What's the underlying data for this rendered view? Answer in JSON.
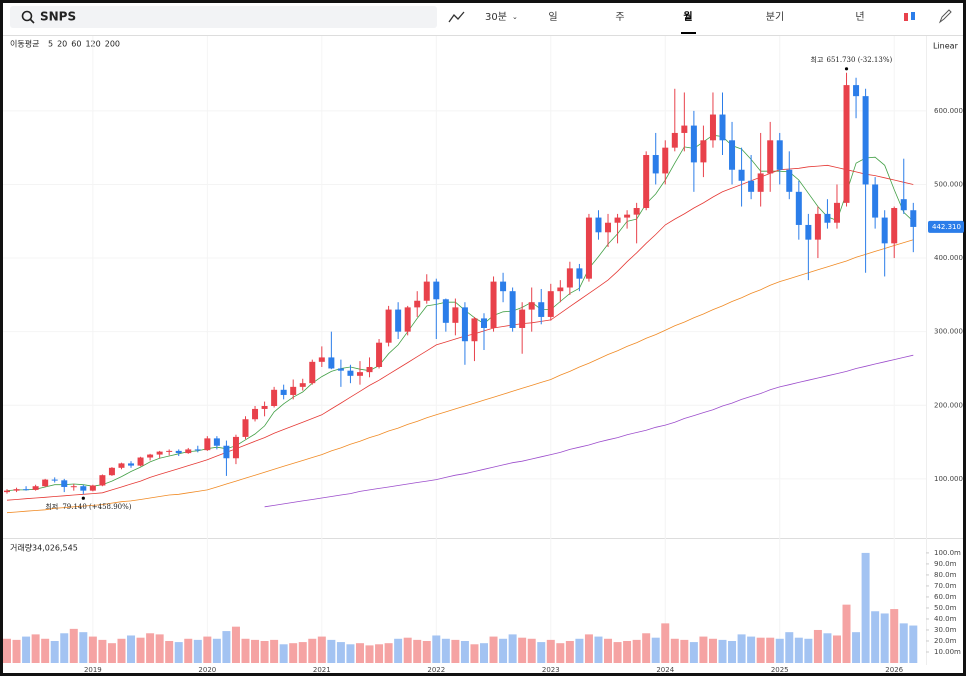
{
  "toolbar": {
    "symbol": "SNPS",
    "interval": "30분",
    "periods": [
      "일",
      "주",
      "월",
      "분기",
      "년"
    ]
  },
  "chart_data": [
    {
      "type": "candlestick",
      "indicator_label": "이동평균",
      "scale_label": "Linear",
      "up_color": "#e8414b",
      "down_color": "#2b7de9",
      "open": [
        82,
        84,
        86,
        85,
        90,
        99,
        98,
        89,
        90,
        84,
        91,
        105,
        115,
        121,
        118,
        129,
        133,
        137,
        138,
        135,
        140,
        139,
        155,
        145,
        128,
        157,
        181,
        195,
        199,
        221,
        214,
        225,
        230,
        259,
        265,
        250,
        247,
        240,
        245,
        252,
        285,
        330,
        300,
        333,
        342,
        368,
        344,
        312,
        333,
        287,
        318,
        305,
        368,
        355,
        305,
        330,
        340,
        320,
        355,
        360,
        386,
        372,
        455,
        435,
        448,
        455,
        459,
        468,
        540,
        515,
        550,
        570,
        580,
        530,
        560,
        595,
        560,
        520,
        505,
        490,
        515,
        560,
        520,
        490,
        445,
        425,
        460,
        448,
        475,
        635,
        620,
        500,
        455,
        420,
        480,
        465
      ],
      "high": [
        86,
        88,
        90,
        92,
        100,
        102,
        100,
        93,
        92,
        92,
        106,
        116,
        122,
        124,
        130,
        134,
        138,
        140,
        140,
        142,
        145,
        158,
        158,
        152,
        160,
        185,
        199,
        205,
        225,
        228,
        235,
        236,
        262,
        280,
        300,
        262,
        255,
        260,
        265,
        290,
        335,
        340,
        335,
        355,
        378,
        372,
        345,
        345,
        340,
        320,
        325,
        375,
        380,
        360,
        340,
        360,
        358,
        365,
        370,
        395,
        392,
        460,
        465,
        460,
        460,
        465,
        475,
        545,
        570,
        560,
        630,
        625,
        600,
        580,
        625,
        625,
        585,
        550,
        540,
        570,
        585,
        570,
        545,
        505,
        460,
        470,
        480,
        500,
        651.73,
        645,
        630,
        510,
        465,
        470,
        535,
        475
      ],
      "low": [
        80,
        82,
        84,
        84,
        89,
        95,
        82,
        84,
        79.14,
        83,
        90,
        104,
        113,
        115,
        117,
        125,
        128,
        132,
        131,
        134,
        136,
        138,
        140,
        104,
        120,
        154,
        178,
        185,
        197,
        208,
        208,
        220,
        228,
        252,
        249,
        225,
        230,
        228,
        238,
        250,
        280,
        290,
        295,
        320,
        338,
        290,
        300,
        295,
        255,
        260,
        275,
        300,
        340,
        300,
        270,
        300,
        310,
        315,
        340,
        350,
        355,
        368,
        425,
        415,
        420,
        440,
        420,
        465,
        500,
        500,
        545,
        545,
        490,
        510,
        550,
        540,
        500,
        470,
        480,
        470,
        490,
        500,
        480,
        425,
        370,
        400,
        440,
        440,
        470,
        590,
        380,
        440,
        375,
        400,
        460,
        408
      ],
      "close": [
        84,
        86,
        85,
        90,
        99,
        98,
        89,
        90,
        84,
        91,
        105,
        115,
        121,
        118,
        129,
        133,
        137,
        138,
        135,
        140,
        139,
        155,
        145,
        128,
        157,
        181,
        195,
        199,
        221,
        214,
        225,
        230,
        259,
        265,
        250,
        247,
        240,
        245,
        252,
        285,
        330,
        300,
        333,
        342,
        368,
        344,
        312,
        333,
        287,
        318,
        305,
        368,
        355,
        305,
        330,
        340,
        320,
        355,
        360,
        386,
        372,
        455,
        435,
        448,
        455,
        459,
        468,
        540,
        515,
        550,
        570,
        580,
        530,
        560,
        595,
        560,
        520,
        505,
        490,
        515,
        560,
        520,
        490,
        445,
        425,
        460,
        448,
        475,
        635,
        620,
        500,
        455,
        420,
        468,
        465,
        442.31
      ],
      "close_label": "442.310",
      "ylim": [
        21,
        699
      ],
      "yticks": [
        {
          "value": 100,
          "label": "100.000"
        },
        {
          "value": 200,
          "label": "200.000"
        },
        {
          "value": 300,
          "label": "300.000"
        },
        {
          "value": 400,
          "label": "400.000"
        },
        {
          "value": 500,
          "label": "500.000"
        },
        {
          "value": 600,
          "label": "600.000"
        }
      ],
      "annotations": [
        {
          "label": "최고",
          "text": "651.730 (-32.13%)"
        },
        {
          "label": "최저",
          "text": "79.140 (+458.90%)"
        }
      ],
      "moving_averages": [
        {
          "name": "5",
          "color": "#43a047",
          "values": [
            84,
            85,
            85,
            86,
            89,
            92,
            92,
            93,
            92,
            90,
            92,
            97,
            103,
            110,
            116,
            123,
            128,
            131,
            134,
            137,
            138,
            141,
            143,
            141,
            145,
            153,
            161,
            172,
            191,
            202,
            211,
            218,
            230,
            239,
            246,
            250,
            252,
            249,
            247,
            254,
            270,
            282,
            300,
            318,
            335,
            337,
            340,
            340,
            329,
            319,
            311,
            322,
            327,
            328,
            333,
            340,
            330,
            330,
            341,
            352,
            359,
            386,
            402,
            419,
            433,
            450,
            453,
            474,
            487,
            506,
            529,
            551,
            549,
            558,
            567,
            565,
            553,
            548,
            534,
            518,
            518,
            518,
            517,
            506,
            488,
            470,
            456,
            451,
            489,
            529,
            536,
            537,
            526,
            493,
            462,
            450
          ]
        },
        {
          "name": "20",
          "color": "#e53935",
          "values": [
            71,
            72,
            73,
            74,
            75,
            76,
            77,
            78,
            79,
            80,
            81,
            85,
            89,
            93,
            97,
            102,
            106,
            110,
            114,
            118,
            122,
            126,
            131,
            136,
            141,
            146,
            151,
            156,
            162,
            167,
            172,
            177,
            182,
            187,
            195,
            203,
            211,
            219,
            227,
            234,
            242,
            250,
            258,
            266,
            274,
            282,
            286,
            290,
            294,
            297,
            301,
            305,
            307,
            309,
            311,
            312,
            314,
            316,
            325,
            334,
            343,
            352,
            361,
            370,
            382,
            395,
            407,
            420,
            432,
            445,
            453,
            460,
            468,
            475,
            483,
            490,
            495,
            500,
            505,
            510,
            515,
            520,
            521,
            522,
            524,
            525,
            526,
            523,
            520,
            517,
            514,
            512,
            509,
            506,
            503,
            500
          ]
        },
        {
          "name": "60",
          "color": "#f08a24",
          "values": [
            54,
            55,
            56,
            57,
            58,
            60,
            61,
            62,
            63,
            64,
            65,
            67,
            69,
            70,
            72,
            74,
            76,
            78,
            79,
            81,
            83,
            85,
            89,
            93,
            97,
            101,
            105,
            109,
            113,
            117,
            121,
            125,
            129,
            133,
            138,
            142,
            147,
            151,
            156,
            160,
            165,
            169,
            174,
            178,
            183,
            187,
            191,
            195,
            199,
            203,
            207,
            211,
            215,
            219,
            223,
            227,
            231,
            235,
            241,
            246,
            252,
            257,
            263,
            269,
            274,
            280,
            285,
            291,
            296,
            302,
            308,
            313,
            319,
            324,
            330,
            335,
            341,
            346,
            352,
            357,
            363,
            368,
            372,
            376,
            380,
            384,
            388,
            392,
            396,
            401,
            405,
            409,
            413,
            417,
            421,
            425
          ]
        },
        {
          "name": "120",
          "color": "#9c4dcc",
          "values": [
            null,
            null,
            null,
            null,
            null,
            null,
            null,
            null,
            null,
            null,
            null,
            null,
            null,
            null,
            null,
            null,
            null,
            null,
            null,
            null,
            null,
            null,
            null,
            null,
            null,
            null,
            null,
            62,
            64,
            66,
            68,
            70,
            72,
            74,
            76,
            78,
            80,
            83,
            85,
            87,
            89,
            91,
            93,
            95,
            97,
            99,
            102,
            105,
            107,
            110,
            113,
            116,
            119,
            122,
            124,
            127,
            130,
            133,
            136,
            140,
            143,
            146,
            150,
            153,
            156,
            160,
            163,
            166,
            170,
            173,
            177,
            182,
            186,
            190,
            194,
            199,
            203,
            208,
            212,
            216,
            221,
            225,
            228,
            231,
            234,
            237,
            240,
            243,
            246,
            250,
            253,
            256,
            259,
            262,
            265,
            268
          ]
        },
        {
          "name": "200",
          "color": "#e0409a"
        }
      ]
    },
    {
      "type": "bar",
      "label": "거래량",
      "value_label": "34,026,545",
      "up_color": "#f5a3a3",
      "down_color": "#a3c3f2",
      "categories": [
        null,
        null,
        null,
        null,
        null,
        null,
        null,
        null,
        null,
        "2019",
        null,
        null,
        null,
        null,
        null,
        null,
        null,
        null,
        null,
        null,
        null,
        "2020",
        null,
        null,
        null,
        null,
        null,
        null,
        null,
        null,
        null,
        null,
        null,
        "2021",
        null,
        null,
        null,
        null,
        null,
        null,
        null,
        null,
        null,
        null,
        null,
        "2022",
        null,
        null,
        null,
        null,
        null,
        null,
        null,
        null,
        null,
        null,
        null,
        "2023",
        null,
        null,
        null,
        null,
        null,
        null,
        null,
        null,
        null,
        null,
        null,
        "2024",
        null,
        null,
        null,
        null,
        null,
        null,
        null,
        null,
        null,
        null,
        null,
        "2025",
        null,
        null,
        null,
        null,
        null,
        null,
        null,
        null,
        null,
        null,
        null,
        "2026",
        null,
        null
      ],
      "values": [
        22,
        21,
        24,
        26,
        22,
        20,
        27,
        31,
        28,
        24,
        21,
        18,
        22,
        25,
        23,
        27,
        26,
        20,
        19,
        22,
        21,
        24,
        22,
        29,
        33,
        22,
        21,
        20,
        21,
        17,
        18,
        19,
        22,
        24,
        21,
        19,
        17,
        18,
        16,
        17,
        18,
        22,
        23,
        21,
        20,
        25,
        22,
        21,
        20,
        17,
        18,
        24,
        22,
        26,
        23,
        22,
        19,
        21,
        18,
        20,
        22,
        26,
        24,
        22,
        19,
        20,
        21,
        27,
        23,
        36,
        22,
        21,
        19,
        24,
        22,
        21,
        20,
        26,
        24,
        23,
        23,
        22,
        28,
        23,
        22,
        30,
        27,
        25,
        53,
        28,
        100,
        47,
        45,
        49,
        36,
        34.03
      ],
      "ylim": [
        0,
        109
      ],
      "yticks": [
        {
          "value": 10,
          "label": "10.00m"
        },
        {
          "value": 20,
          "label": "20.0m"
        },
        {
          "value": 30,
          "label": "30.0m"
        },
        {
          "value": 40,
          "label": "40.0m"
        },
        {
          "value": 50,
          "label": "50.0m"
        },
        {
          "value": 60,
          "label": "60.0m"
        },
        {
          "value": 70,
          "label": "70.0m"
        },
        {
          "value": 80,
          "label": "80.0m"
        },
        {
          "value": 90,
          "label": "90.0m"
        },
        {
          "value": 100,
          "label": "100.0m"
        }
      ]
    }
  ]
}
